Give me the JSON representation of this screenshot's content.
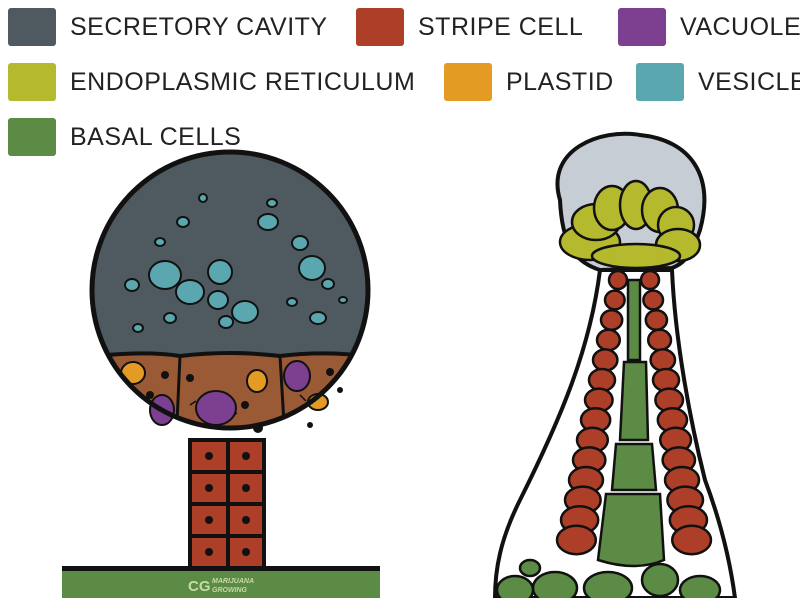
{
  "legend": [
    {
      "label": "SECRETORY CAVITY",
      "color": "#4f5a60"
    },
    {
      "label": "STRIPE CELL",
      "color": "#ad3f29"
    },
    {
      "label": "VACUOLE",
      "color": "#7d3f8f"
    },
    {
      "label": "ENDOPLASMIC RETICULUM",
      "color": "#b5b92e"
    },
    {
      "label": "PLASTID",
      "color": "#e39b24"
    },
    {
      "label": "VESICLE",
      "color": "#5ba7b0"
    },
    {
      "label": "BASAL CELLS",
      "color": "#5b8b45"
    }
  ],
  "logo": {
    "text": "MARIJUANA GROWING",
    "mark": "CG"
  }
}
